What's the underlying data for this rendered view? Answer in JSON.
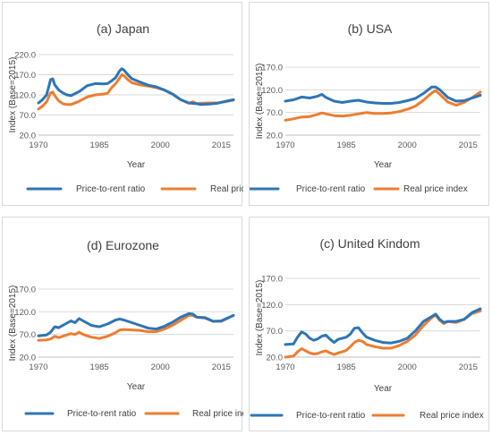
{
  "colors": {
    "ratio": "#2E75B6",
    "price": "#ED7D31",
    "grid": "#d9d9d9",
    "text": "#404040"
  },
  "chart_data": [
    {
      "type": "line",
      "title": "(a) Japan",
      "xlabel": "Year",
      "ylabel": "Index (Base=2015)",
      "xlim": [
        1970,
        2018
      ],
      "ylim": [
        20,
        220
      ],
      "yticks": [
        "220.0",
        "170.0",
        "120.0",
        "70.0",
        "20.0"
      ],
      "yticks_values": [
        220,
        170,
        120,
        70,
        20
      ],
      "xticks": [
        "1970",
        "1985",
        "2000",
        "2015"
      ],
      "xticks_values": [
        1970,
        1985,
        2000,
        2015
      ],
      "grid": true,
      "legend": "bottom",
      "series": [
        {
          "name": "Price-to-rent ratio",
          "x": [
            1970,
            1971,
            1972,
            1973,
            1973.5,
            1974,
            1975,
            1976,
            1977,
            1978,
            1980,
            1982,
            1984,
            1986,
            1987,
            1988,
            1989,
            1990,
            1990.5,
            1991,
            1992,
            1993,
            1995,
            1997,
            1999,
            2001,
            2003,
            2005,
            2007,
            2009,
            2010,
            2012,
            2014,
            2016,
            2018
          ],
          "y": [
            100,
            108,
            120,
            158,
            160,
            145,
            132,
            125,
            120,
            118,
            128,
            143,
            148,
            147,
            148,
            155,
            163,
            180,
            185,
            182,
            170,
            160,
            152,
            144,
            140,
            132,
            122,
            108,
            100,
            98,
            96,
            97,
            99,
            104,
            108
          ]
        },
        {
          "name": "Real price index",
          "x": [
            1970,
            1971,
            1972,
            1973,
            1973.5,
            1974,
            1975,
            1976,
            1977,
            1978,
            1980,
            1982,
            1984,
            1986,
            1987,
            1988,
            1989,
            1990,
            1990.5,
            1991,
            1992,
            1993,
            1995,
            1997,
            1999,
            2001,
            2003,
            2005,
            2007,
            2008,
            2009,
            2010,
            2012,
            2014,
            2016,
            2018
          ],
          "y": [
            85,
            92,
            103,
            125,
            127,
            118,
            105,
            98,
            96,
            96,
            104,
            115,
            120,
            122,
            124,
            138,
            148,
            162,
            170,
            168,
            158,
            150,
            145,
            142,
            138,
            132,
            122,
            108,
            99,
            103,
            98,
            99,
            100,
            100,
            103,
            107
          ]
        }
      ]
    },
    {
      "type": "line",
      "title": "(b) USA",
      "xlabel": "Year",
      "ylabel": "Index (Base=2015)",
      "xlim": [
        1970,
        2018
      ],
      "ylim": [
        20,
        170
      ],
      "yticks": [
        "170.0",
        "120.0",
        "70.0",
        "20.0"
      ],
      "yticks_values": [
        170,
        120,
        70,
        20
      ],
      "xticks": [
        "1970",
        "1985",
        "2000",
        "2015"
      ],
      "xticks_values": [
        1970,
        1985,
        2000,
        2015
      ],
      "grid": true,
      "legend": "bottom",
      "series": [
        {
          "name": "Price-to-rent ratio",
          "x": [
            1970,
            1972,
            1974,
            1976,
            1978,
            1979,
            1980,
            1982,
            1984,
            1986,
            1988,
            1990,
            1992,
            1994,
            1996,
            1998,
            2000,
            2002,
            2004,
            2006,
            2007,
            2008,
            2010,
            2012,
            2014,
            2016,
            2018
          ],
          "y": [
            95,
            98,
            104,
            102,
            106,
            110,
            103,
            95,
            92,
            95,
            97,
            93,
            91,
            90,
            90,
            92,
            96,
            101,
            112,
            126,
            126,
            120,
            103,
            95,
            96,
            102,
            108
          ]
        },
        {
          "name": "Real price index",
          "x": [
            1970,
            1972,
            1974,
            1976,
            1978,
            1979,
            1980,
            1982,
            1984,
            1986,
            1988,
            1990,
            1992,
            1994,
            1996,
            1998,
            2000,
            2002,
            2004,
            2006,
            2007,
            2008,
            2010,
            2012,
            2014,
            2016,
            2018
          ],
          "y": [
            53,
            56,
            60,
            61,
            66,
            69,
            67,
            63,
            62,
            64,
            67,
            70,
            68,
            68,
            69,
            72,
            77,
            84,
            97,
            113,
            118,
            110,
            93,
            86,
            92,
            103,
            115
          ]
        }
      ]
    },
    {
      "type": "line",
      "title": "(d) Eurozone",
      "xlabel": "Year",
      "ylabel": "Index (Base=2015)",
      "xlim": [
        1970,
        2018
      ],
      "ylim": [
        20,
        170
      ],
      "yticks": [
        "170.0",
        "120.0",
        "70.0",
        "20.0"
      ],
      "yticks_values": [
        170,
        120,
        70,
        20
      ],
      "xticks": [
        "1970",
        "1985",
        "2000",
        "2015"
      ],
      "xticks_values": [
        1970,
        1985,
        2000,
        2015
      ],
      "grid": true,
      "legend": "bottom",
      "series": [
        {
          "name": "Price-to-rent ratio",
          "x": [
            1970,
            1972,
            1973,
            1974,
            1975,
            1977,
            1978,
            1979,
            1980,
            1981,
            1983,
            1985,
            1987,
            1989,
            1990,
            1991,
            1993,
            1995,
            1997,
            1999,
            2001,
            2003,
            2005,
            2007,
            2008,
            2009,
            2011,
            2013,
            2015,
            2016,
            2018
          ],
          "y": [
            67,
            69,
            75,
            87,
            85,
            95,
            100,
            96,
            105,
            100,
            90,
            87,
            93,
            102,
            104,
            102,
            96,
            90,
            84,
            82,
            88,
            97,
            108,
            116,
            115,
            108,
            107,
            99,
            100,
            104,
            112
          ]
        },
        {
          "name": "Real price index",
          "x": [
            1970,
            1972,
            1973,
            1974,
            1975,
            1977,
            1978,
            1979,
            1980,
            1981,
            1983,
            1985,
            1987,
            1989,
            1990,
            1991,
            1993,
            1995,
            1997,
            1999,
            2001,
            2003,
            2005,
            2007,
            2008,
            2009,
            2011,
            2013,
            2015,
            2016,
            2018
          ],
          "y": [
            57,
            58,
            60,
            66,
            63,
            69,
            72,
            70,
            75,
            70,
            64,
            61,
            66,
            74,
            80,
            81,
            80,
            79,
            76,
            76,
            82,
            90,
            101,
            112,
            112,
            108,
            106,
            99,
            99,
            103,
            112
          ]
        }
      ]
    },
    {
      "type": "line",
      "title": "(c) United Kindom",
      "xlabel": "Year",
      "ylabel": "Index (Base=2015)",
      "xlim": [
        1970,
        2018
      ],
      "ylim": [
        20,
        170
      ],
      "yticks": [
        "170.0",
        "120.0",
        "70.0",
        "20.0"
      ],
      "yticks_values": [
        170,
        120,
        70,
        20
      ],
      "xticks": [
        "1970",
        "1985",
        "2000",
        "2015"
      ],
      "xticks_values": [
        1970,
        1985,
        2000,
        2015
      ],
      "grid": true,
      "legend": "bottom",
      "series": [
        {
          "name": "Price-to-rent ratio",
          "x": [
            1970,
            1972,
            1973,
            1974,
            1975,
            1976,
            1977,
            1978,
            1979,
            1980,
            1981,
            1982,
            1983,
            1984,
            1985,
            1986,
            1987,
            1988,
            1989,
            1990,
            1992,
            1994,
            1996,
            1998,
            2000,
            2002,
            2004,
            2006,
            2007,
            2008,
            2009,
            2010,
            2012,
            2014,
            2016,
            2018
          ],
          "y": [
            44,
            45,
            58,
            68,
            64,
            56,
            52,
            55,
            60,
            62,
            54,
            48,
            54,
            56,
            58,
            64,
            75,
            76,
            66,
            58,
            52,
            48,
            47,
            50,
            56,
            70,
            88,
            97,
            102,
            92,
            86,
            88,
            88,
            92,
            105,
            112
          ]
        },
        {
          "name": "Real price index",
          "x": [
            1970,
            1972,
            1973,
            1974,
            1975,
            1976,
            1977,
            1978,
            1979,
            1980,
            1981,
            1982,
            1983,
            1984,
            1985,
            1986,
            1987,
            1988,
            1989,
            1990,
            1992,
            1994,
            1996,
            1998,
            2000,
            2002,
            2004,
            2006,
            2007,
            2008,
            2009,
            2010,
            2012,
            2014,
            2016,
            2018
          ],
          "y": [
            20,
            22,
            30,
            36,
            32,
            28,
            26,
            27,
            30,
            32,
            28,
            25,
            28,
            30,
            33,
            40,
            48,
            52,
            50,
            44,
            40,
            37,
            37,
            42,
            50,
            62,
            80,
            95,
            100,
            90,
            84,
            88,
            86,
            92,
            103,
            108
          ]
        }
      ]
    }
  ]
}
